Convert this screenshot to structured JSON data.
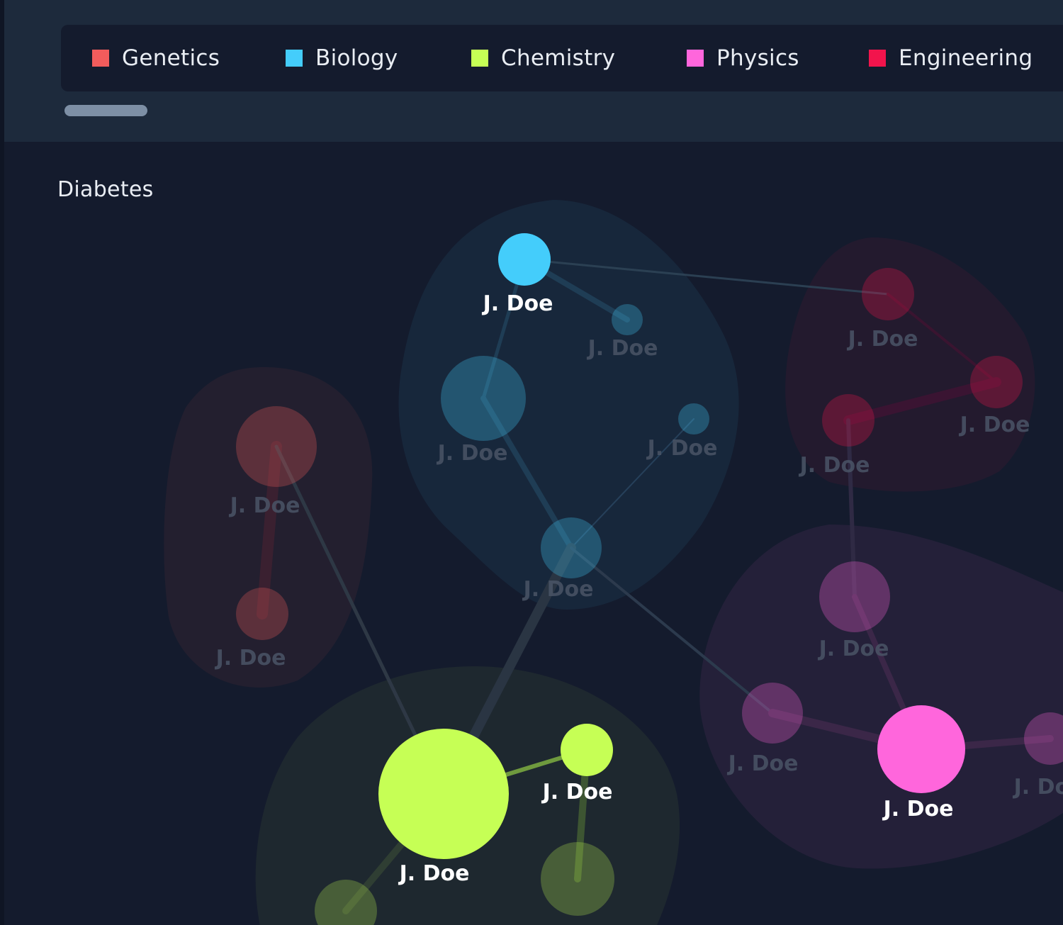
{
  "legend": [
    {
      "label": "Genetics",
      "color": "#f25c5c"
    },
    {
      "label": "Biology",
      "color": "#44cdfb"
    },
    {
      "label": "Chemistry",
      "color": "#c6ff55"
    },
    {
      "label": "Physics",
      "color": "#ff66dc"
    },
    {
      "label": "Engineering",
      "color": "#f2144c"
    }
  ],
  "graph": {
    "title": "Diabetes",
    "node_label": "J. Doe",
    "highlighted": [
      "b1",
      "c1",
      "c2",
      "p3"
    ]
  },
  "icons": {
    "legend_swatch": "square-swatch"
  }
}
